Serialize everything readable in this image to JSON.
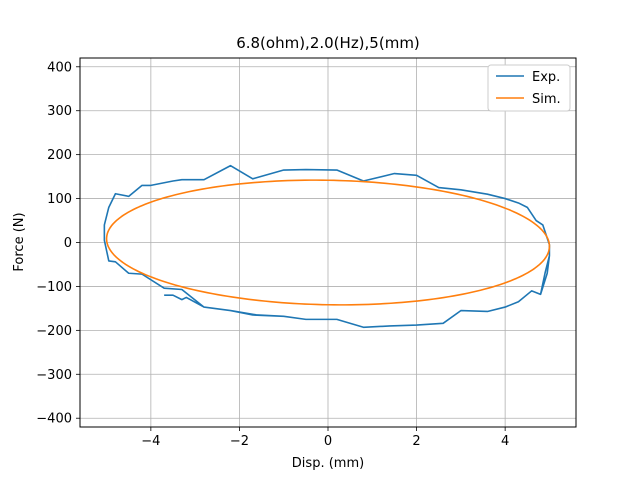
{
  "chart_data": {
    "type": "line",
    "title": "6.8(ohm),2.0(Hz),5(mm)",
    "xlabel": "Disp. (mm)",
    "ylabel": "Force (N)",
    "xlim": [
      -5.6,
      5.6
    ],
    "ylim": [
      -420,
      420
    ],
    "xticks": [
      -4,
      -2,
      0,
      2,
      4
    ],
    "yticks": [
      -400,
      -300,
      -200,
      -100,
      0,
      100,
      200,
      300,
      400
    ],
    "xtick_labels": [
      "−4",
      "−2",
      "0",
      "2",
      "4"
    ],
    "ytick_labels": [
      "−400",
      "−300",
      "−200",
      "−100",
      "0",
      "100",
      "200",
      "300",
      "400"
    ],
    "grid": true,
    "legend_position": "top-right",
    "series": [
      {
        "name": "Exp.",
        "color": "#1f77b4",
        "x": [
          -3.7,
          -3.5,
          -3.3,
          -3.2,
          -2.8,
          -2.2,
          -1.6,
          -1.0,
          -0.5,
          0.2,
          0.8,
          1.4,
          2.0,
          2.6,
          3.0,
          3.6,
          4.0,
          4.3,
          4.6,
          4.8,
          4.95,
          5.0,
          5.0,
          4.95,
          4.85,
          4.7,
          4.5,
          4.3,
          4.0,
          3.6,
          3.0,
          2.5,
          2.0,
          1.5,
          0.8,
          0.2,
          -0.5,
          -1.0,
          -1.7,
          -2.2,
          -2.8,
          -3.3,
          -3.5,
          -4.0,
          -4.2,
          -4.5,
          -4.8,
          -4.95,
          -5.05,
          -5.05,
          -4.95,
          -4.8,
          -4.5,
          -4.2,
          -3.7,
          -3.3,
          -2.8,
          -2.2,
          -1.7,
          -1.0,
          -0.5,
          0.2,
          0.8,
          1.4,
          2.0,
          2.6,
          3.0,
          3.6,
          4.0,
          4.3,
          4.6,
          4.8,
          4.9,
          5.0
        ],
        "y": [
          -120,
          -120,
          -130,
          -125,
          -147,
          -155,
          -165,
          -168,
          -175,
          -175,
          -193,
          -190,
          -188,
          -184,
          -155,
          -157,
          -147,
          -135,
          -110,
          -118,
          -70,
          -30,
          -5,
          10,
          40,
          50,
          80,
          90,
          100,
          110,
          120,
          125,
          153,
          157,
          140,
          165,
          166,
          165,
          145,
          175,
          143,
          143,
          140,
          130,
          130,
          105,
          111,
          80,
          40,
          5,
          -42,
          -44,
          -70,
          -72,
          -104,
          -107,
          -147,
          -155,
          -165,
          -168,
          -175,
          -175,
          -193,
          -190,
          -188,
          -184,
          -155,
          -157,
          -147,
          -135,
          -110,
          -118,
          -70,
          -30
        ]
      },
      {
        "name": "Sim.",
        "color": "#ff7f0e",
        "x": [],
        "y": []
      }
    ]
  }
}
